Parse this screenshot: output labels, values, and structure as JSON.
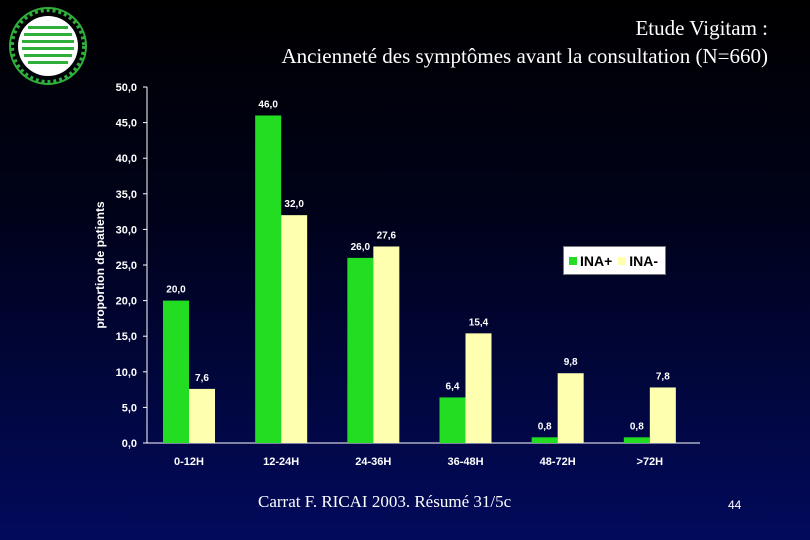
{
  "title": {
    "line1": "Etude Vigitam :",
    "line2": "Ancienneté des symptômes avant la consultation (N=660)"
  },
  "footer": {
    "citation": "Carrat F. RICAI 2003. Résumé  31/5c",
    "page_number": "44"
  },
  "logo": {
    "icon": "virus-logo-icon",
    "color": "#2fae3a"
  },
  "chart_data": {
    "type": "bar",
    "title": "",
    "xlabel": "",
    "ylabel": "proportion de patients",
    "ylim": [
      0,
      50
    ],
    "yticks": [
      "0,0",
      "5,0",
      "10,0",
      "15,0",
      "20,0",
      "25,0",
      "30,0",
      "35,0",
      "40,0",
      "45,0",
      "50,0"
    ],
    "categories": [
      "0-12H",
      "12-24H",
      "24-36H",
      "36-48H",
      "48-72H",
      ">72H"
    ],
    "series": [
      {
        "name": "INA+",
        "color": "#22dd22",
        "values": [
          20.0,
          46.0,
          26.0,
          6.4,
          0.8,
          0.8
        ],
        "labels": [
          "20,0",
          "46,0",
          "26,0",
          "6,4",
          "0,8",
          "0,8"
        ]
      },
      {
        "name": "INA-",
        "color": "#ffffb0",
        "values": [
          7.6,
          32.0,
          27.6,
          15.4,
          9.8,
          7.8
        ],
        "labels": [
          "7,6",
          "32,0",
          "27,6",
          "15,4",
          "9,8",
          "7,8"
        ]
      }
    ],
    "legend_position": "right",
    "grid": false
  }
}
